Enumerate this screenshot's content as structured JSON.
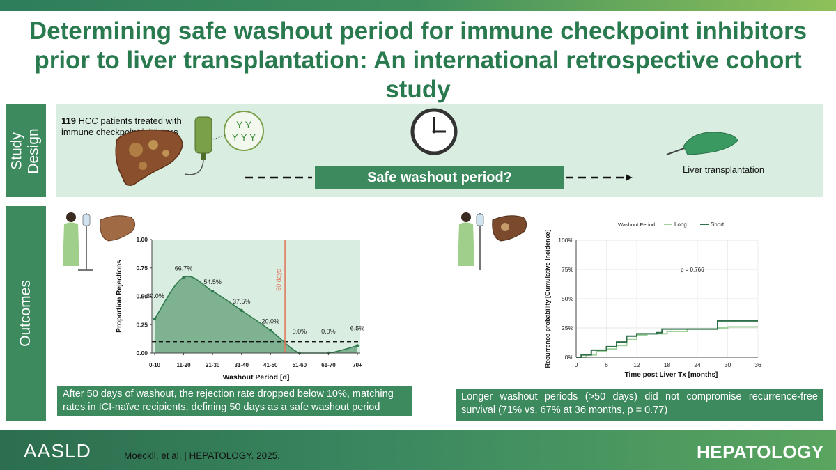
{
  "title": "Determining safe washout period for immune checkpoint inhibitors prior to liver transplantation: An international retrospective cohort study",
  "colors": {
    "accent": "#3d8a5f",
    "title": "#2a7a4f",
    "panel": "#d9eee1",
    "long": "#9fd19a",
    "short": "#2f6f49",
    "marker": "#e07a5f"
  },
  "study_design": {
    "label": "Study Design",
    "count": "119",
    "text": "HCC patients treated with immune checkpoint inhibitors",
    "banner": "Safe washout period?",
    "endpoint": "Liver transplantation"
  },
  "outcomes": {
    "label": "Outcomes",
    "left_summary": "After 50 days of washout, the rejection rate dropped below 10%, matching rates in ICI-naïve  recipients, defining 50 days as a safe washout period",
    "right_summary": "Longer washout periods (>50 days) did not compromise recurrence-free survival (71% vs. 67% at 36 months, p = 0.77)"
  },
  "chart_data": [
    {
      "type": "area",
      "xlabel": "Washout Period [d]",
      "ylabel": "Proportion Rejections",
      "categories": [
        "0-10",
        "11-20",
        "21-30",
        "31-40",
        "41-50",
        "51-60",
        "61-70",
        "70+"
      ],
      "values": [
        0.3,
        0.667,
        0.545,
        0.375,
        0.2,
        0.0,
        0.0,
        0.065
      ],
      "data_labels": [
        "30.0%",
        "66.7%",
        "54.5%",
        "37.5%",
        "20.0%",
        "0.0%",
        "0.0%",
        "6.5%"
      ],
      "yticks": [
        "0.00",
        "0.25",
        "0.50",
        "0.75",
        "1.00"
      ],
      "ylim": [
        0,
        1
      ],
      "threshold": 0.1,
      "vline_label": "50 days",
      "vline_at": 50
    },
    {
      "type": "line",
      "xlabel": "Time post Liver Tx [months]",
      "ylabel": "Recurrence probability [Cumulative Incidence]",
      "legend_title": "Washout Period",
      "xticks": [
        "0",
        "6",
        "12",
        "18",
        "24",
        "30",
        "36"
      ],
      "yticks": [
        "0%",
        "25%",
        "50%",
        "75%",
        "100%"
      ],
      "xlim": [
        0,
        36
      ],
      "ylim": [
        0,
        1
      ],
      "annotation": "p = 0.766",
      "series": [
        {
          "name": "Long",
          "x": [
            0,
            2,
            4,
            6,
            8,
            10,
            12,
            14,
            18,
            22,
            28,
            30,
            36
          ],
          "y": [
            0,
            0.02,
            0.05,
            0.07,
            0.1,
            0.15,
            0.19,
            0.2,
            0.22,
            0.24,
            0.25,
            0.26,
            0.26
          ]
        },
        {
          "name": "Short",
          "x": [
            0,
            1,
            3,
            6,
            8,
            10,
            12,
            16,
            17,
            24,
            28,
            30,
            36
          ],
          "y": [
            0,
            0.02,
            0.06,
            0.09,
            0.13,
            0.18,
            0.2,
            0.21,
            0.24,
            0.24,
            0.31,
            0.31,
            0.31
          ]
        }
      ]
    }
  ],
  "footer": {
    "brand": "AASLD",
    "citation": "Moeckli,  et al.  | HEPATOLOGY.  2025.",
    "journal": "HEPATOLOGY"
  }
}
